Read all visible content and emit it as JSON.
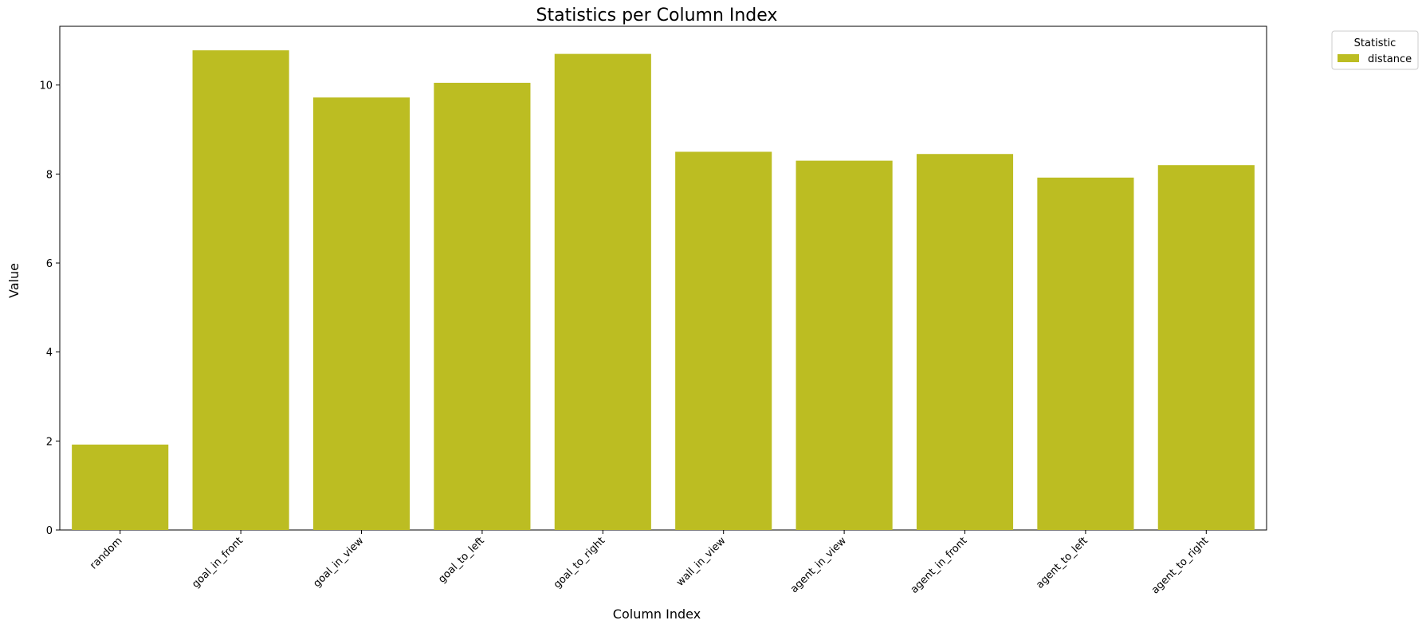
{
  "chart_data": {
    "type": "bar",
    "title": "Statistics per Column Index",
    "xlabel": "Column Index",
    "ylabel": "Value",
    "categories": [
      "random",
      "goal_in_front",
      "goal_in_view",
      "goal_to_left",
      "goal_to_right",
      "wall_in_view",
      "agent_in_view",
      "agent_in_front",
      "agent_to_left",
      "agent_to_right"
    ],
    "series": [
      {
        "name": "distance",
        "color": "#bcbd22",
        "values": [
          1.92,
          10.78,
          9.72,
          10.05,
          10.7,
          8.5,
          8.3,
          8.45,
          7.92,
          8.2
        ]
      }
    ],
    "ylim": [
      0,
      11.32
    ],
    "yticks": [
      0,
      2,
      4,
      6,
      8,
      10
    ],
    "grid": false,
    "legend": {
      "title": "Statistic",
      "placement": "outside-top-right"
    }
  }
}
